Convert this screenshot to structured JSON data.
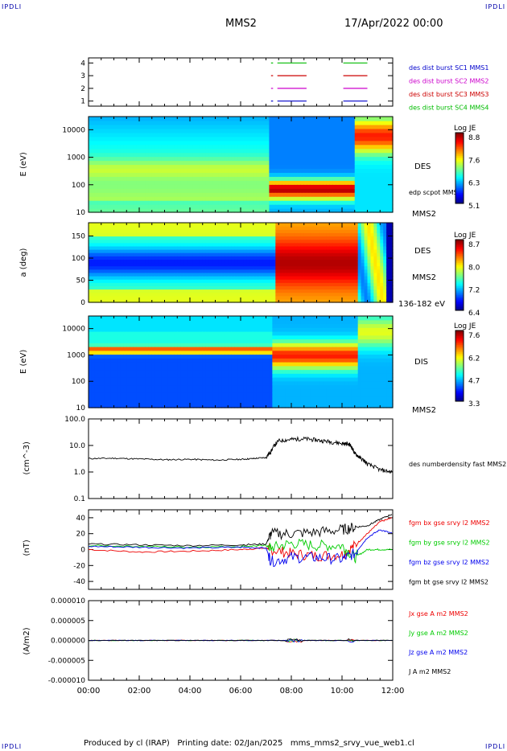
{
  "corner_labels": {
    "tl": "IPDLI",
    "tr": "IPDLI",
    "bl": "IPDLI",
    "br": "IPDLI"
  },
  "header": {
    "spacecraft": "MMS2",
    "date": "17/Apr/2022 00:00"
  },
  "footer": "Produced by cl (IRAP)   Printing date: 02/Jan/2025   mms_mms2_srvy_vue_web1.cl",
  "colors": {
    "sc1": "#0000cc",
    "sc2": "#cc00cc",
    "sc3": "#cc0000",
    "sc4": "#00bb00",
    "black": "#000000",
    "green": "#00cc00",
    "blue": "#0000ee",
    "red": "#ee0000"
  },
  "chart_data": [
    {
      "type": "line",
      "name": "availability",
      "yticks": [
        "1",
        "2",
        "3",
        "4"
      ],
      "labels": [
        "des dist burst SC1 MMS1",
        "des dist burst SC2 MMS2",
        "des dist burst SC3 MMS3",
        "des dist burst SC4 MMS4"
      ],
      "intervals": [
        [
          7.45,
          8.6
        ],
        [
          10.05,
          11.0
        ]
      ]
    },
    {
      "type": "heatmap",
      "name": "des-energy",
      "ylabel": "E (eV)",
      "yscale": "log",
      "yticks": [
        "10",
        "100",
        "1000",
        "10000"
      ],
      "ylim": [
        10,
        30000
      ],
      "right_label": "DES",
      "inner_label": "edp scpot MMS2",
      "bottom_label": "MMS2",
      "colorbar": {
        "title": "Log JE",
        "ticks": [
          "8.8",
          "7.6",
          "6.3",
          "5.1"
        ],
        "range": [
          5.1,
          8.8
        ]
      }
    },
    {
      "type": "heatmap",
      "name": "des-pitch",
      "ylabel": "a (deg)",
      "yticks": [
        "0",
        "50",
        "100",
        "150"
      ],
      "ylim": [
        0,
        180
      ],
      "right_label": "DES",
      "right_label2": "MMS2",
      "bottom_label": "136-182 eV",
      "colorbar": {
        "title": "Log JE",
        "ticks": [
          "8.7",
          "8.0",
          "7.2",
          "6.4"
        ],
        "range": [
          6.4,
          8.7
        ]
      }
    },
    {
      "type": "heatmap",
      "name": "dis-energy",
      "ylabel": "E (eV)",
      "yscale": "log",
      "yticks": [
        "10",
        "100",
        "1000",
        "10000"
      ],
      "ylim": [
        10,
        30000
      ],
      "right_label": "DIS",
      "bottom_label": "MMS2",
      "colorbar": {
        "title": "Log JE",
        "ticks": [
          "7.6",
          "6.2",
          "4.7",
          "3.3"
        ],
        "range": [
          3.3,
          7.6
        ]
      }
    },
    {
      "type": "line",
      "name": "density",
      "ylabel": "(cm^-3)",
      "yscale": "log",
      "yticks": [
        "0.1",
        "1.0",
        "10.0",
        "100.0"
      ],
      "ylim": [
        0.1,
        100
      ],
      "series": [
        {
          "name": "des numberdensity fast MMS2",
          "x": [
            0,
            1,
            2,
            3,
            4,
            5,
            6,
            6.5,
            7,
            7.2,
            7.5,
            8,
            8.5,
            9,
            9.5,
            10,
            10.3,
            10.5,
            10.7,
            11,
            11.5,
            12
          ],
          "values": [
            3.2,
            3.3,
            3.1,
            2.9,
            3.0,
            2.8,
            3.0,
            3.2,
            3.5,
            6,
            15,
            17,
            18,
            16,
            14,
            12,
            11,
            5,
            3.5,
            2,
            1.2,
            1.0
          ]
        }
      ]
    },
    {
      "type": "line",
      "name": "magnetic-field",
      "ylabel": "(nT)",
      "yticks": [
        "-40",
        "-20",
        "0",
        "20",
        "40"
      ],
      "ylim": [
        -50,
        50
      ],
      "series": [
        {
          "name": "fgm bx gse srvy l2 MMS2",
          "x": [
            0,
            2,
            4,
            6,
            7,
            7.2,
            8,
            9,
            10,
            10.5,
            11,
            11.5,
            12
          ],
          "values": [
            0,
            -3,
            -2,
            0,
            2,
            0,
            -5,
            -8,
            -6,
            5,
            20,
            35,
            40
          ]
        },
        {
          "name": "fgm by gse srvy l2 MMS2",
          "x": [
            0,
            2,
            4,
            6,
            7,
            7.2,
            8,
            9,
            10,
            10.5,
            11,
            11.5,
            12
          ],
          "values": [
            5,
            4,
            3,
            4,
            5,
            2,
            8,
            5,
            5,
            -10,
            0,
            0,
            0
          ]
        },
        {
          "name": "fgm bz gse srvy l2 MMS2",
          "x": [
            0,
            2,
            4,
            6,
            7,
            7.2,
            8,
            9,
            10,
            10.5,
            11,
            11.5,
            12
          ],
          "values": [
            4,
            3,
            2,
            3,
            2,
            -15,
            -10,
            -10,
            -12,
            -5,
            15,
            25,
            20
          ]
        },
        {
          "name": "fgm bt gse srvy l2 MMS2",
          "x": [
            0,
            2,
            4,
            6,
            7,
            7.2,
            8,
            9,
            10,
            10.5,
            11,
            11.5,
            12
          ],
          "values": [
            7,
            6,
            5,
            6,
            7,
            20,
            20,
            22,
            25,
            28,
            30,
            38,
            45
          ]
        }
      ]
    },
    {
      "type": "line",
      "name": "current-density",
      "ylabel": "(A/m2)",
      "yticks": [
        "-0.000010",
        "-0.000005",
        "0.000000",
        "0.000005",
        "0.000010"
      ],
      "ylim": [
        -1e-05,
        1e-05
      ],
      "series": [
        {
          "name": "Jx gse A m2 MMS2",
          "values": [
            0
          ]
        },
        {
          "name": "Jy gse A m2 MMS2",
          "values": [
            0
          ]
        },
        {
          "name": "Jz gse A m2 MMS2",
          "values": [
            0
          ]
        },
        {
          "name": "J A m2 MMS2",
          "values": [
            0
          ]
        }
      ]
    }
  ],
  "time_axis": {
    "ticks": [
      "00:00",
      "02:00",
      "04:00",
      "06:00",
      "08:00",
      "10:00",
      "12:00"
    ],
    "range": [
      0,
      12
    ]
  }
}
